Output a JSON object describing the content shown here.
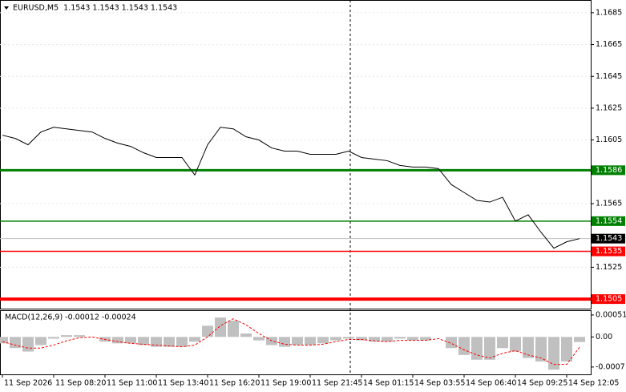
{
  "chart_data": [
    {
      "type": "line",
      "title": "EURUSD,M5  1.1543 1.1543 1.1543 1.1543",
      "color": "#000000",
      "categories": [
        "11 Sep 2026",
        null,
        null,
        null,
        "11 Sep 08:20",
        null,
        null,
        null,
        "11 Sep 11:00",
        null,
        null,
        null,
        "11 Sep 13:40",
        null,
        null,
        null,
        "11 Sep 16:20",
        null,
        null,
        null,
        "11 Sep 19:00",
        null,
        null,
        null,
        "11 Sep 21:45",
        null,
        null,
        null,
        "14 Sep 01:15",
        null,
        null,
        null,
        "14 Sep 03:55",
        null,
        null,
        null,
        "14 Sep 06:40",
        null,
        null,
        null,
        "14 Sep 09:25",
        null,
        null,
        null,
        "14 Sep 12:05",
        null
      ],
      "values": [
        1.1608,
        1.1606,
        1.1602,
        1.161,
        1.1613,
        1.1612,
        1.1611,
        1.161,
        1.1606,
        1.1603,
        1.1601,
        1.1597,
        1.1594,
        1.1594,
        1.1594,
        1.1583,
        1.1602,
        1.1613,
        1.1612,
        1.1607,
        1.1605,
        1.16,
        1.1598,
        1.1598,
        1.1596,
        1.1596,
        1.1596,
        1.1598,
        1.1594,
        1.1593,
        1.1592,
        1.1589,
        1.1588,
        1.1588,
        1.1587,
        1.1577,
        1.1572,
        1.1567,
        1.1566,
        1.1569,
        1.1554,
        1.1558,
        1.1547,
        1.1537,
        1.1541,
        1.1543
      ],
      "ylim": [
        1.1499,
        1.1693
      ],
      "yticks": [
        1.1685,
        1.1665,
        1.1645,
        1.1625,
        1.1605,
        1.1565,
        1.1525
      ],
      "grid": true,
      "levels": [
        {
          "value": 1.1586,
          "color": "#008000",
          "width": 3
        },
        {
          "value": 1.1554,
          "color": "#008000",
          "width": 1.5
        },
        {
          "value": 1.1535,
          "color": "#ff0000",
          "width": 1.5
        },
        {
          "value": 1.1505,
          "color": "#ff0000",
          "width": 4
        }
      ],
      "last_price": 1.1543
    },
    {
      "type": "macd",
      "title": "MACD(12,26,9) -0.00012 -0.00024",
      "color": "#c0c0c0",
      "signal_color": "#ff0000",
      "values": [
        -0.00015,
        -0.00026,
        -0.00034,
        -0.00019,
        -4e-05,
        4e-05,
        4e-05,
        0,
        -0.00011,
        -0.00015,
        -0.00015,
        -0.00019,
        -0.00023,
        -0.00023,
        -0.00023,
        -0.00011,
        0.00026,
        0.00045,
        0.00038,
        8e-05,
        -8e-05,
        -0.00019,
        -0.00023,
        -0.00019,
        -0.00019,
        -0.00015,
        -8e-05,
        -4e-05,
        -8e-05,
        -0.00011,
        -0.00011,
        -4e-05,
        -8e-05,
        -8e-05,
        0,
        -0.00026,
        -0.00042,
        -0.00053,
        -0.00053,
        -0.00026,
        -0.00034,
        -0.00049,
        -0.00057,
        -0.00076,
        -0.00057,
        -0.00012
      ],
      "signal_values": [
        -0.00011,
        -0.00019,
        -0.00026,
        -0.00026,
        -0.00019,
        -9e-05,
        -2e-05,
        0,
        -6e-05,
        -0.00011,
        -0.00015,
        -0.00017,
        -0.00019,
        -0.00021,
        -0.00023,
        -0.00019,
        0,
        0.00026,
        0.00042,
        0.00028,
        8e-05,
        -9e-05,
        -0.00017,
        -0.00019,
        -0.00019,
        -0.00017,
        -0.00011,
        -6e-05,
        -6e-05,
        -9e-05,
        -0.00011,
        -8e-05,
        -8e-05,
        -8e-05,
        -4e-05,
        -0.00015,
        -0.0003,
        -0.00042,
        -0.00049,
        -0.00038,
        -0.00032,
        -0.00042,
        -0.00049,
        -0.00064,
        -0.00064,
        -0.00024
      ],
      "ylim": [
        -0.00087,
        0.00062
      ],
      "yticks": [
        0.00051,
        {
          "value": 0,
          "label": "0.00"
        },
        -0.0007
      ]
    }
  ]
}
